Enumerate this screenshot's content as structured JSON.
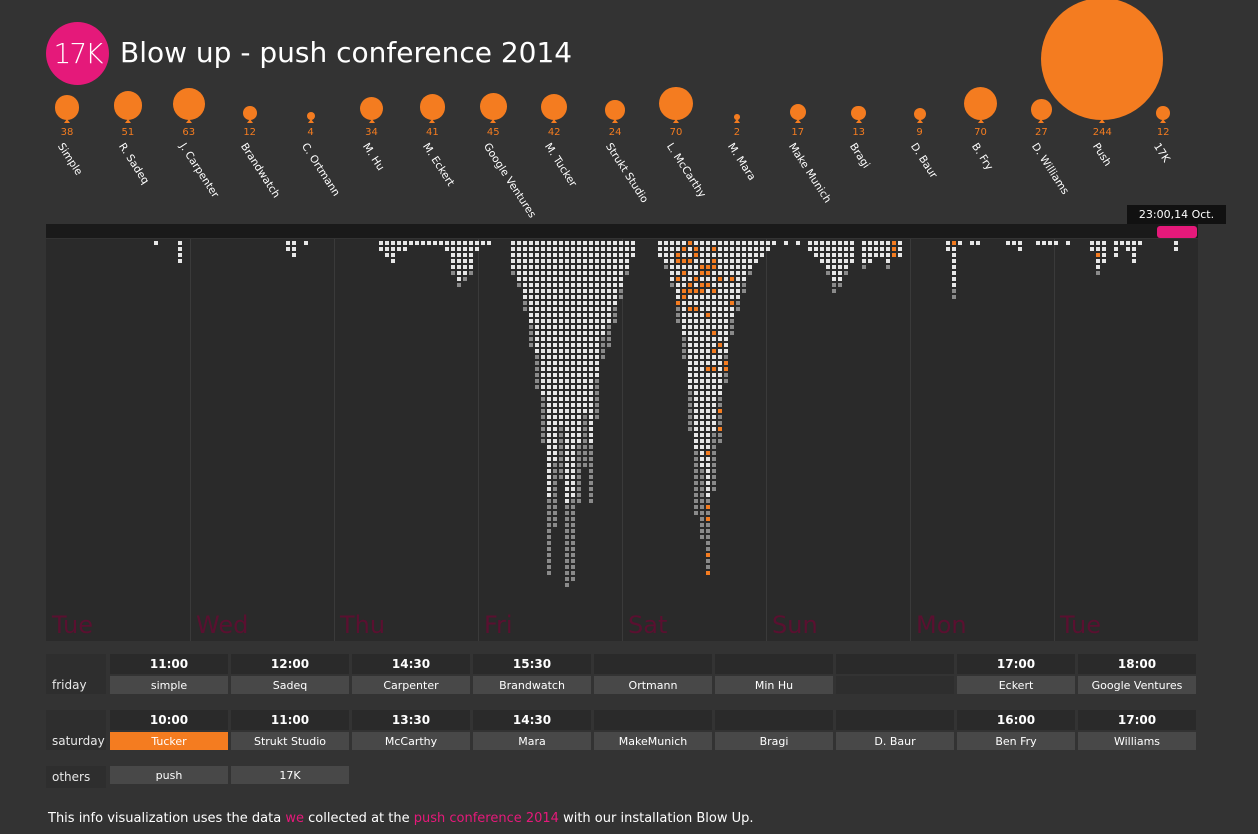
{
  "header": {
    "logo_text": "17K",
    "title": "Blow up - push conference 2014"
  },
  "colors": {
    "accent": "#f47c20",
    "brand": "#e5197a",
    "background": "#333333"
  },
  "balloons": [
    {
      "count": "38",
      "name": "Simple"
    },
    {
      "count": "51",
      "name": "R. Sadeq"
    },
    {
      "count": "63",
      "name": "J. Carpenter"
    },
    {
      "count": "12",
      "name": "Brandwatch"
    },
    {
      "count": "4",
      "name": "C. Ortmann"
    },
    {
      "count": "34",
      "name": "M. Hu"
    },
    {
      "count": "41",
      "name": "M. Eckert"
    },
    {
      "count": "45",
      "name": "Google Ventures"
    },
    {
      "count": "42",
      "name": "M. Tucker"
    },
    {
      "count": "24",
      "name": "Strukt Studio"
    },
    {
      "count": "70",
      "name": "L. McCarthy"
    },
    {
      "count": "2",
      "name": "M. Mara"
    },
    {
      "count": "17",
      "name": "Make Munich"
    },
    {
      "count": "13",
      "name": "Bragi"
    },
    {
      "count": "9",
      "name": "D. Baur"
    },
    {
      "count": "70",
      "name": "B. Fry"
    },
    {
      "count": "27",
      "name": "D. Williams"
    },
    {
      "count": "244",
      "name": "Push"
    },
    {
      "count": "12",
      "name": "17K"
    }
  ],
  "timeline": {
    "current_time": "23:00,",
    "current_date": "14 Oct."
  },
  "days": [
    "Tue",
    "Wed",
    "Thu",
    "Fri",
    "Sat",
    "Sun",
    "Mon",
    "Tue"
  ],
  "schedule": {
    "friday": {
      "label": "friday",
      "slots": [
        {
          "time": "11:00",
          "speaker": "simple"
        },
        {
          "time": "12:00",
          "speaker": "Sadeq"
        },
        {
          "time": "14:30",
          "speaker": "Carpenter"
        },
        {
          "time": "15:30",
          "speaker": "Brandwatch"
        },
        {
          "time": "",
          "speaker": "Ortmann"
        },
        {
          "time": "",
          "speaker": "Min Hu"
        },
        {
          "time": "",
          "speaker": ""
        },
        {
          "time": "17:00",
          "speaker": "Eckert"
        },
        {
          "time": "18:00",
          "speaker": "Google Ventures"
        }
      ]
    },
    "saturday": {
      "label": "saturday",
      "slots": [
        {
          "time": "10:00",
          "speaker": "Tucker",
          "active": true
        },
        {
          "time": "11:00",
          "speaker": "Strukt Studio"
        },
        {
          "time": "13:30",
          "speaker": "McCarthy"
        },
        {
          "time": "14:30",
          "speaker": "Mara"
        },
        {
          "time": "",
          "speaker": "MakeMunich"
        },
        {
          "time": "",
          "speaker": "Bragi"
        },
        {
          "time": "",
          "speaker": "D. Baur"
        },
        {
          "time": "16:00",
          "speaker": "Ben Fry"
        },
        {
          "time": "17:00",
          "speaker": "Williams"
        }
      ]
    },
    "others": {
      "label": "others",
      "slots": [
        {
          "speaker": "push"
        },
        {
          "speaker": "17K"
        }
      ]
    }
  },
  "footer": {
    "part1": "This info visualization uses the data ",
    "link1": "we",
    "part2": " collected at the ",
    "link2": "push conference 2014",
    "part3": " with our installation Blow Up."
  }
}
